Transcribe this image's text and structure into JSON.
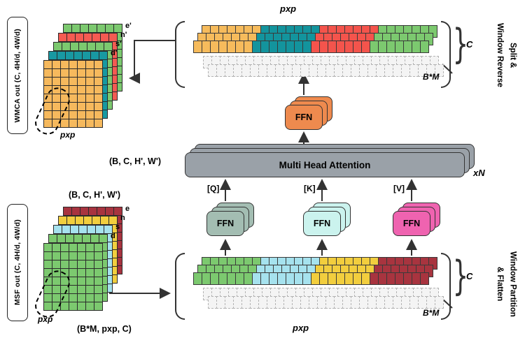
{
  "side_boxes": {
    "wmca": "WMCA out (C, 4H/d, 4W/d)",
    "msf": "MSF out (C, 4H/d, 4W/d)"
  },
  "top_stack": {
    "pxp": "pxp",
    "arrow_shape": "(B, C, H', W')",
    "layers": [
      {
        "label": "e'",
        "color": "#7CC96F"
      },
      {
        "label": "n'",
        "color": "#F45B52"
      },
      {
        "label": "s'",
        "color": "#7CC96F"
      },
      {
        "label": "d'",
        "color": "#1899A2"
      },
      {
        "label": "",
        "color": "#F6B95D"
      }
    ]
  },
  "bottom_stack": {
    "shape_top": "(B, C, H', W')",
    "pxp": "pxp",
    "shape_bottom": "(B*M, pxp, C)",
    "layers": [
      {
        "label": "e",
        "color": "#A8343F"
      },
      {
        "label": "n",
        "color": "#F2CE3E"
      },
      {
        "label": "s",
        "color": "#A6E2EE"
      },
      {
        "label": "d",
        "color": "#7CC96F"
      },
      {
        "label": "",
        "color": "#7CC96F"
      }
    ]
  },
  "top_structure": {
    "pxp": "pxp",
    "c": "C",
    "bm": "B*M",
    "side": "Split &\nWindow Reverse",
    "segments": [
      {
        "color": "#F6BB5C",
        "count": 7
      },
      {
        "color": "#13949D",
        "count": 7
      },
      {
        "color": "#F4544C",
        "count": 7
      },
      {
        "color": "#7CC96F",
        "count": 7
      }
    ]
  },
  "bottom_structure": {
    "pxp": "pxp",
    "c": "C",
    "bm": "B*M",
    "side": "Window Partition\n& Flatten",
    "segments": [
      {
        "color": "#7CC96F",
        "count": 7
      },
      {
        "color": "#A6E2EE",
        "count": 7
      },
      {
        "color": "#F2CE3E",
        "count": 7
      },
      {
        "color": "#A8343F",
        "count": 7
      }
    ]
  },
  "mha": {
    "label": "Multi Head Attention",
    "xn": "xN",
    "color": "#9AA1A8"
  },
  "ffn_out": {
    "label": "FFN",
    "color": "#EE8A4E"
  },
  "ffn_q": {
    "label": "FFN",
    "tag": "[Q]",
    "color": "#A3BDB2"
  },
  "ffn_k": {
    "label": "FFN",
    "tag": "[K]",
    "color": "#CBF3EE"
  },
  "ffn_v": {
    "label": "FFN",
    "tag": "[V]",
    "color": "#EF63B0"
  }
}
